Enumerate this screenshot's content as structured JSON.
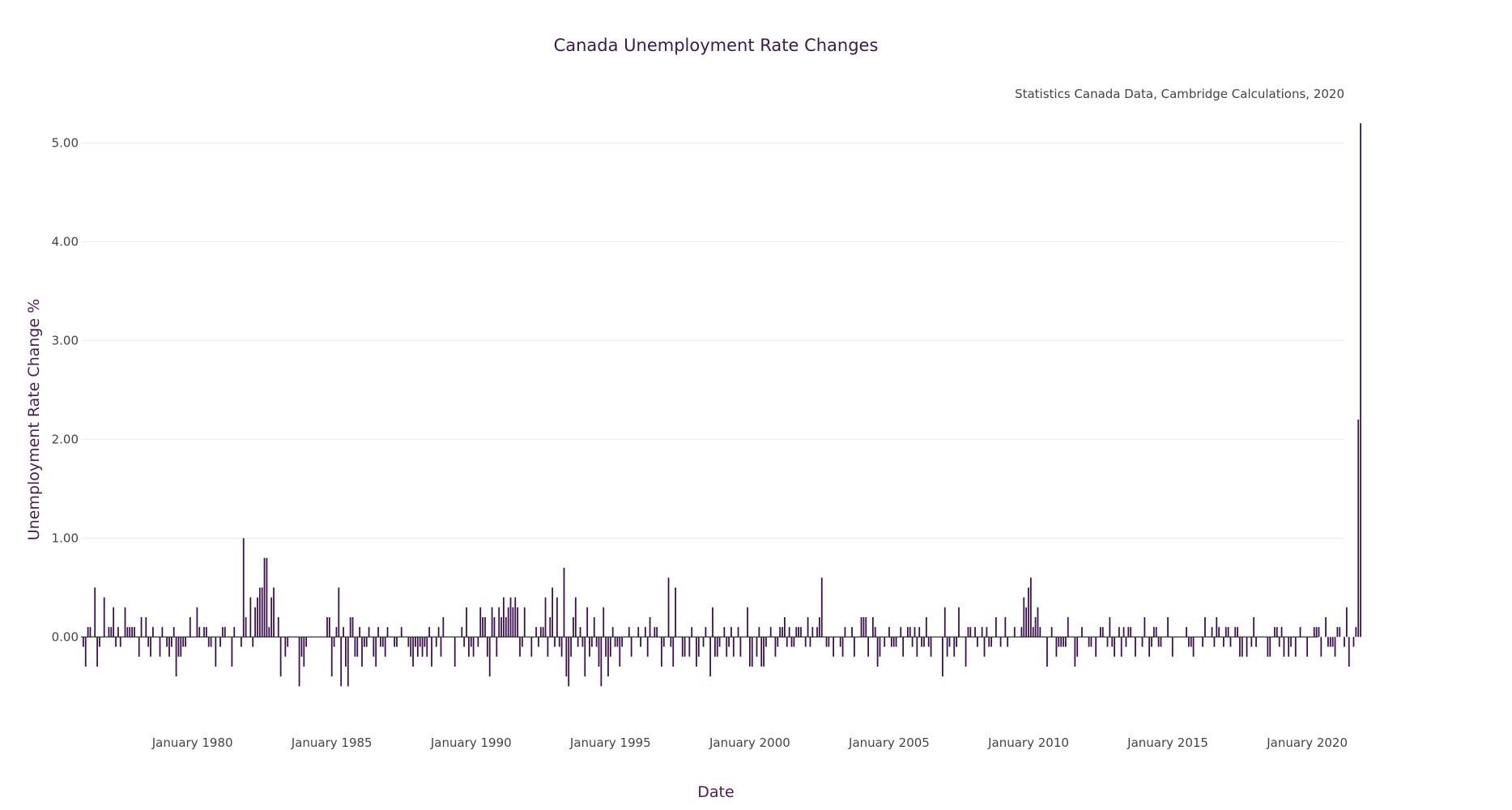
{
  "colors": {
    "bar": "#3b0f4f",
    "grid": "#ececec",
    "text": "#444444",
    "title": "#3b1a4f"
  },
  "chart_data": {
    "type": "bar",
    "title": "Canada Unemployment Rate Changes",
    "subtitle": "Statistics Canada Data, Cambridge Calculations, 2020",
    "xlabel": "Date",
    "ylabel": "Unemployment Rate Change %",
    "x_start": "1976-02",
    "x_end": "2020-05",
    "x_frequency": "monthly",
    "xlim": [
      "1976-01",
      "2021-05"
    ],
    "ylim": [
      -0.85,
      5.3
    ],
    "grid": true,
    "x_ticks": [
      {
        "date": "1980-01",
        "label": "January 1980"
      },
      {
        "date": "1985-01",
        "label": "January 1985"
      },
      {
        "date": "1990-01",
        "label": "January 1990"
      },
      {
        "date": "1995-01",
        "label": "January 1995"
      },
      {
        "date": "2000-01",
        "label": "January 2000"
      },
      {
        "date": "2005-01",
        "label": "January 2005"
      },
      {
        "date": "2010-01",
        "label": "January 2010"
      },
      {
        "date": "2015-01",
        "label": "January 2015"
      },
      {
        "date": "2020-01",
        "label": "January 2020"
      }
    ],
    "y_ticks": [
      {
        "value": 0,
        "label": "0.00"
      },
      {
        "value": 1,
        "label": "1.00"
      },
      {
        "value": 2,
        "label": "2.00"
      },
      {
        "value": 3,
        "label": "3.00"
      },
      {
        "value": 4,
        "label": "4.00"
      },
      {
        "value": 5,
        "label": "5.00"
      }
    ],
    "values": [
      -0.1,
      -0.3,
      0.1,
      0.1,
      0.0,
      0.5,
      -0.3,
      -0.1,
      0.0,
      0.4,
      0.0,
      0.1,
      0.1,
      0.3,
      -0.1,
      0.1,
      -0.1,
      0.0,
      0.3,
      0.1,
      0.1,
      0.1,
      0.1,
      0.0,
      -0.2,
      0.2,
      0.0,
      0.2,
      -0.1,
      -0.2,
      0.1,
      0.0,
      0.0,
      -0.2,
      0.1,
      0.0,
      -0.1,
      -0.2,
      -0.1,
      0.1,
      -0.4,
      -0.2,
      -0.2,
      -0.1,
      -0.1,
      0.0,
      0.2,
      0.0,
      0.0,
      0.3,
      0.1,
      0.0,
      0.1,
      0.1,
      -0.1,
      -0.1,
      0.0,
      -0.3,
      0.0,
      -0.1,
      0.1,
      0.1,
      0.0,
      0.0,
      -0.3,
      0.1,
      0.0,
      0.0,
      -0.1,
      1.0,
      0.2,
      0.0,
      0.4,
      -0.1,
      0.3,
      0.4,
      0.5,
      0.5,
      0.8,
      0.8,
      0.1,
      0.4,
      0.5,
      0.0,
      0.2,
      -0.4,
      0.0,
      -0.2,
      -0.1,
      0.0,
      0.0,
      0.0,
      0.0,
      -0.5,
      -0.2,
      -0.3,
      -0.1,
      0.0,
      0.0,
      0.0,
      0.0,
      0.0,
      0.0,
      0.0,
      0.0,
      0.2,
      0.2,
      -0.4,
      -0.1,
      0.1,
      0.5,
      -0.5,
      0.1,
      -0.3,
      -0.5,
      0.2,
      0.2,
      -0.2,
      -0.2,
      0.1,
      -0.3,
      -0.1,
      -0.1,
      0.1,
      0.0,
      -0.2,
      -0.3,
      0.1,
      -0.1,
      -0.1,
      -0.2,
      0.1,
      0.0,
      0.0,
      -0.1,
      -0.1,
      0.0,
      0.1,
      0.0,
      0.0,
      -0.1,
      -0.2,
      -0.3,
      -0.1,
      -0.2,
      -0.1,
      -0.2,
      -0.1,
      -0.2,
      0.1,
      -0.3,
      0.0,
      -0.1,
      0.1,
      -0.2,
      0.2,
      0.0,
      0.0,
      0.0,
      0.0,
      -0.3,
      0.0,
      0.0,
      0.1,
      -0.1,
      0.3,
      -0.2,
      -0.1,
      -0.2,
      0.0,
      -0.1,
      0.3,
      0.2,
      0.2,
      -0.2,
      -0.4,
      0.3,
      0.2,
      -0.2,
      0.3,
      0.2,
      0.4,
      0.2,
      0.3,
      0.4,
      0.3,
      0.4,
      0.3,
      -0.2,
      -0.1,
      0.3,
      0.0,
      0.0,
      -0.2,
      0.0,
      0.1,
      -0.1,
      0.1,
      0.1,
      0.4,
      -0.2,
      0.2,
      0.5,
      -0.1,
      0.4,
      -0.1,
      -0.2,
      0.7,
      -0.4,
      -0.5,
      -0.2,
      0.2,
      0.4,
      -0.1,
      0.1,
      -0.1,
      -0.4,
      0.3,
      -0.2,
      -0.1,
      0.2,
      -0.1,
      -0.3,
      -0.5,
      0.3,
      -0.2,
      -0.4,
      -0.2,
      0.1,
      -0.1,
      -0.1,
      -0.3,
      -0.1,
      0.0,
      0.0,
      0.1,
      -0.2,
      0.0,
      0.0,
      0.1,
      -0.1,
      0.0,
      0.1,
      -0.2,
      0.2,
      0.0,
      0.1,
      0.1,
      0.0,
      -0.3,
      -0.1,
      0.0,
      0.6,
      -0.1,
      -0.3,
      0.5,
      0.0,
      0.0,
      -0.2,
      -0.2,
      0.0,
      -0.2,
      0.1,
      0.0,
      -0.3,
      -0.2,
      0.0,
      -0.1,
      0.1,
      0.0,
      -0.4,
      0.3,
      -0.2,
      -0.2,
      -0.1,
      0.0,
      0.1,
      -0.2,
      -0.1,
      0.1,
      -0.2,
      0.0,
      0.1,
      -0.2,
      0.0,
      0.0,
      0.3,
      -0.3,
      -0.3,
      0.0,
      -0.2,
      0.1,
      -0.3,
      -0.3,
      -0.1,
      0.0,
      0.1,
      0.0,
      -0.2,
      -0.1,
      0.1,
      0.1,
      0.2,
      -0.1,
      0.1,
      -0.1,
      -0.1,
      0.1,
      0.1,
      0.1,
      0.0,
      -0.1,
      0.2,
      -0.1,
      0.1,
      0.0,
      0.1,
      0.2,
      0.6,
      0.0,
      -0.1,
      -0.1,
      0.0,
      -0.2,
      0.0,
      0.0,
      -0.1,
      -0.2,
      0.1,
      0.0,
      0.0,
      0.1,
      -0.2,
      0.0,
      0.0,
      0.2,
      0.2,
      0.2,
      -0.2,
      0.0,
      0.2,
      0.1,
      -0.3,
      -0.2,
      0.0,
      -0.1,
      0.0,
      0.1,
      -0.1,
      -0.1,
      -0.1,
      0.0,
      0.1,
      -0.2,
      0.0,
      0.1,
      0.1,
      -0.1,
      0.1,
      -0.2,
      0.1,
      -0.1,
      -0.1,
      0.2,
      -0.1,
      -0.2,
      0.0,
      0.0,
      0.0,
      0.0,
      -0.4,
      0.3,
      -0.2,
      -0.1,
      0.0,
      -0.2,
      -0.1,
      0.3,
      0.0,
      0.0,
      -0.3,
      0.1,
      0.1,
      0.0,
      0.1,
      -0.1,
      0.0,
      0.1,
      -0.2,
      0.1,
      -0.1,
      -0.1,
      0.0,
      0.2,
      0.0,
      -0.1,
      0.0,
      0.2,
      -0.1,
      0.0,
      0.0,
      0.1,
      0.0,
      0.0,
      0.1,
      0.4,
      0.3,
      0.5,
      0.6,
      0.1,
      0.2,
      0.3,
      0.1,
      0.0,
      0.0,
      -0.3,
      0.0,
      0.1,
      0.0,
      -0.2,
      -0.1,
      -0.1,
      -0.1,
      -0.1,
      0.2,
      0.0,
      0.0,
      -0.3,
      -0.2,
      0.0,
      0.1,
      0.0,
      0.0,
      -0.1,
      -0.1,
      0.0,
      -0.2,
      0.0,
      0.1,
      0.1,
      0.0,
      -0.1,
      0.2,
      -0.1,
      -0.2,
      0.0,
      0.1,
      -0.2,
      0.1,
      -0.1,
      0.1,
      0.1,
      0.0,
      -0.2,
      0.0,
      0.0,
      -0.1,
      0.2,
      0.0,
      -0.2,
      -0.1,
      0.1,
      0.1,
      -0.1,
      -0.1,
      0.0,
      0.0,
      0.2,
      0.0,
      -0.2,
      0.0,
      0.0,
      0.0,
      0.0,
      0.0,
      0.1,
      -0.1,
      -0.1,
      -0.2,
      0.0,
      0.0,
      0.0,
      -0.1,
      0.2,
      0.0,
      0.0,
      0.1,
      -0.1,
      0.2,
      0.1,
      0.0,
      -0.1,
      0.1,
      0.1,
      -0.1,
      0.0,
      0.1,
      0.1,
      -0.2,
      -0.2,
      0.0,
      -0.2,
      0.0,
      -0.1,
      0.2,
      -0.1,
      0.0,
      0.0,
      0.0,
      0.0,
      -0.2,
      -0.2,
      0.0,
      0.1,
      0.1,
      -0.1,
      0.1,
      -0.2,
      0.0,
      -0.2,
      -0.1,
      0.0,
      -0.2,
      0.0,
      0.1,
      0.0,
      0.0,
      -0.2,
      0.0,
      0.0,
      0.1,
      0.1,
      0.1,
      -0.2,
      0.0,
      0.2,
      -0.1,
      -0.1,
      -0.1,
      -0.2,
      0.1,
      0.1,
      0.0,
      -0.1,
      0.3,
      -0.3,
      0.0,
      -0.1,
      0.1,
      2.2,
      5.2
    ]
  }
}
